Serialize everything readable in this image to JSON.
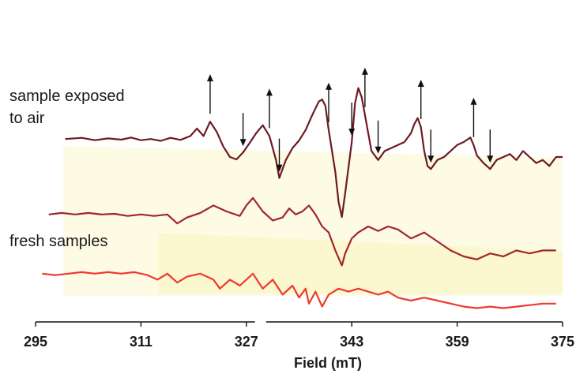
{
  "chart_data": {
    "type": "line",
    "title": "",
    "xlabel": "Field (mT)",
    "ylabel": "",
    "xlim": [
      295,
      375
    ],
    "x_ticks": [
      295,
      311,
      327,
      343,
      359,
      375
    ],
    "grid": false,
    "legend": "none",
    "annotations": {
      "labels": [
        "sample exposed to air",
        "fresh samples"
      ],
      "up_arrows_mT": [
        321.5,
        330.5,
        339.5,
        345,
        353.5,
        361.5
      ],
      "down_arrows_mT": [
        326.5,
        332,
        343,
        347,
        355,
        364
      ]
    },
    "series": [
      {
        "color": "#6e1a22",
        "x": [
          299.5,
          302,
          304,
          306,
          308,
          309.5,
          311,
          312.5,
          314,
          315.5,
          317,
          318.5,
          319.5,
          320.5,
          321.5,
          322.5,
          323.5,
          324.5,
          325.5,
          326.5,
          327.5,
          328.5,
          329.5,
          330.5,
          331.5,
          332,
          333,
          334,
          335,
          336,
          337,
          338,
          338.5,
          339,
          339.5,
          340.5,
          341,
          341.5,
          342,
          343,
          343.5,
          344,
          344.5,
          345,
          345.5,
          346,
          347,
          348,
          349,
          350,
          351,
          352,
          352.5,
          353,
          353.5,
          354,
          354.5,
          355,
          356,
          357,
          358,
          359,
          360,
          361,
          361.5,
          362,
          363,
          364,
          365,
          366,
          367,
          368,
          369,
          370,
          371,
          372,
          373,
          374,
          375
        ],
        "y": [
          1,
          1.4,
          0.6,
          1.2,
          0.8,
          1.5,
          0.6,
          1,
          0.4,
          1.4,
          0.7,
          2,
          4.5,
          2,
          6.8,
          3.4,
          -1.5,
          -5,
          -5.8,
          -3.5,
          -0.3,
          3,
          5.6,
          2,
          -6,
          -12,
          -6,
          -2,
          0.5,
          4,
          9,
          13.5,
          14.2,
          12,
          4,
          -10,
          -20,
          -25,
          -17,
          0,
          13,
          18,
          15,
          9,
          3,
          -3,
          -6,
          -3,
          -2,
          -1,
          0,
          3,
          6,
          8,
          5,
          -3,
          -8,
          -9,
          -6,
          -5,
          -3,
          -1,
          0,
          1.5,
          -1,
          -4.5,
          -7,
          -9,
          -6,
          -5,
          -4,
          -6,
          -3,
          -5,
          -7,
          -6,
          -8,
          -5,
          -5
        ]
      },
      {
        "color": "#a2262c",
        "x": [
          297,
          299,
          301,
          303,
          305,
          307,
          309,
          311,
          313,
          315,
          316.5,
          318,
          320,
          322,
          324,
          326,
          327,
          328,
          329.5,
          331,
          332.5,
          333.5,
          334.5,
          335.5,
          336.5,
          337.5,
          338.5,
          339.5,
          340.5,
          341.5,
          342,
          343,
          344,
          345.5,
          347,
          348.5,
          350,
          352,
          354,
          356,
          358,
          360,
          362,
          364,
          366,
          368,
          370,
          372,
          374
        ],
        "y": [
          -1,
          -0.5,
          -1,
          -0.5,
          -1,
          -0.8,
          -1.5,
          -1,
          -1.5,
          -1,
          -4,
          -2,
          -0.5,
          2,
          0,
          -1.5,
          2,
          4.5,
          0,
          -3,
          -2,
          1,
          -1,
          0,
          2,
          -1,
          -5,
          -7,
          -13,
          -18,
          -14,
          -9,
          -7,
          -5,
          -6.5,
          -5,
          -6,
          -9,
          -7,
          -10,
          -13,
          -15,
          -16,
          -14,
          -15,
          -13,
          -14,
          -13,
          -13
        ]
      },
      {
        "color": "#ee3a2e",
        "x": [
          296,
          298,
          300,
          302,
          304,
          306,
          308,
          310,
          312,
          313.5,
          315,
          316.5,
          318,
          320,
          322,
          323,
          324.5,
          326,
          328,
          329.5,
          331,
          332.5,
          334,
          335,
          336,
          336.5,
          337.5,
          338.5,
          339.5,
          341,
          342.5,
          344,
          345.5,
          347,
          348.5,
          350,
          352,
          354,
          356,
          358,
          360,
          362,
          364,
          366,
          368,
          370,
          372,
          374
        ],
        "y": [
          -1,
          -1.5,
          -1,
          -0.5,
          -1,
          -0.5,
          -1,
          -0.5,
          -1.5,
          -3,
          -1,
          -4,
          -2,
          -1,
          -3,
          -6,
          -3,
          -5,
          -1,
          -6,
          -3,
          -8,
          -5,
          -9,
          -6,
          -11,
          -7,
          -12,
          -8,
          -6,
          -7,
          -6,
          -7,
          -8,
          -7,
          -9,
          -10,
          -9,
          -10,
          -11,
          -12,
          -12.5,
          -12,
          -12.5,
          -12,
          -11.5,
          -11,
          -11
        ]
      }
    ]
  },
  "labels": {
    "exposed_line1": "sample exposed",
    "exposed_line2": "to air",
    "fresh": "fresh samples"
  }
}
